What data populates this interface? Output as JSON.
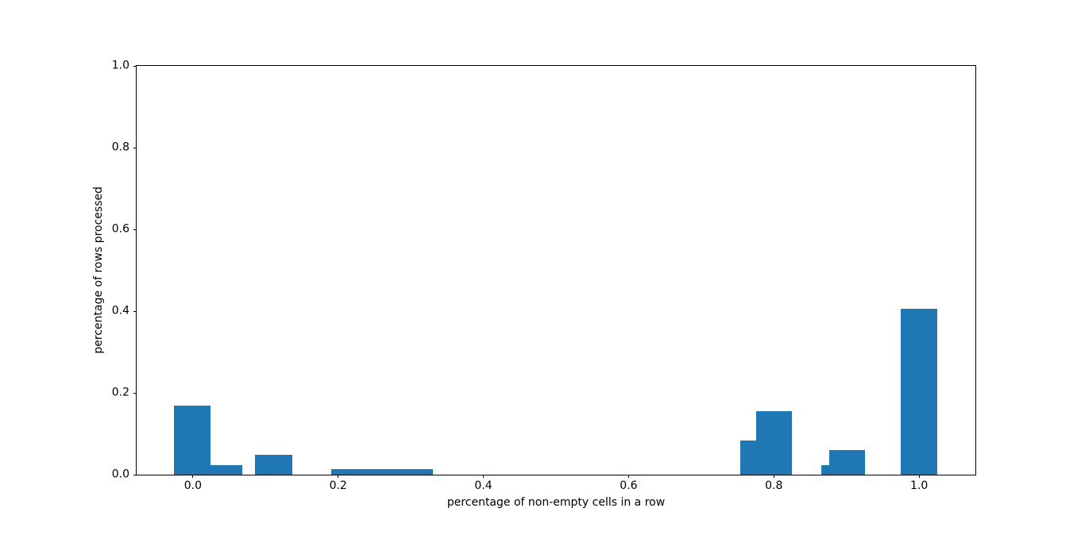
{
  "chart_data": {
    "type": "bar",
    "title": "",
    "xlabel": "percentage of non-empty cells in a row",
    "ylabel": "percentage of rows processed",
    "xlim": [
      -0.0775,
      1.0775
    ],
    "ylim": [
      0,
      1
    ],
    "grid": false,
    "legend": "none",
    "bar_color": "#1f77b4",
    "background_color": "#ffffff",
    "x_ticks": [
      {
        "value": 0.0,
        "label": "0.0"
      },
      {
        "value": 0.2,
        "label": "0.2"
      },
      {
        "value": 0.4,
        "label": "0.4"
      },
      {
        "value": 0.6,
        "label": "0.6"
      },
      {
        "value": 0.8,
        "label": "0.8"
      },
      {
        "value": 1.0,
        "label": "1.0"
      }
    ],
    "y_ticks": [
      {
        "value": 0.0,
        "label": "0.0"
      },
      {
        "value": 0.2,
        "label": "0.2"
      },
      {
        "value": 0.4,
        "label": "0.4"
      },
      {
        "value": 0.6,
        "label": "0.6"
      },
      {
        "value": 0.8,
        "label": "0.8"
      },
      {
        "value": 1.0,
        "label": "1.0"
      }
    ],
    "bars": [
      {
        "x_start": -0.026,
        "x_end": 0.024,
        "height": 0.168
      },
      {
        "x_start": 0.024,
        "x_end": 0.068,
        "height": 0.023
      },
      {
        "x_start": 0.086,
        "x_end": 0.137,
        "height": 0.049
      },
      {
        "x_start": 0.19,
        "x_end": 0.33,
        "height": 0.014
      },
      {
        "x_start": 0.754,
        "x_end": 0.776,
        "height": 0.083
      },
      {
        "x_start": 0.776,
        "x_end": 0.825,
        "height": 0.155
      },
      {
        "x_start": 0.865,
        "x_end": 0.876,
        "height": 0.024
      },
      {
        "x_start": 0.876,
        "x_end": 0.925,
        "height": 0.06
      },
      {
        "x_start": 0.975,
        "x_end": 1.025,
        "height": 0.406
      }
    ]
  }
}
